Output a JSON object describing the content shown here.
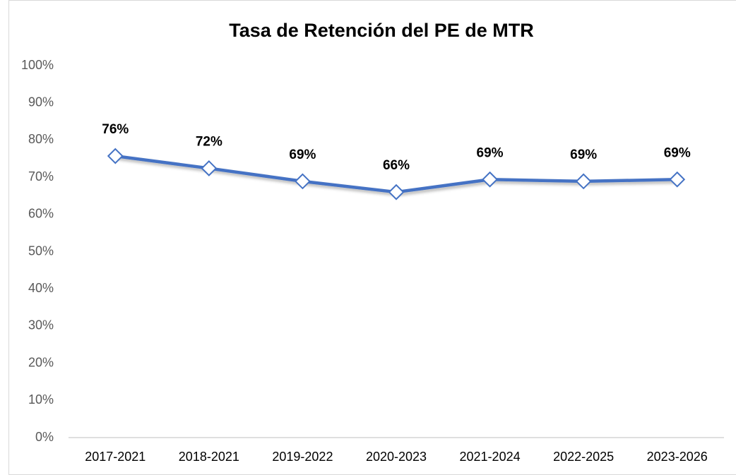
{
  "chart_data": {
    "type": "line",
    "title": "Tasa de Retención del PE de MTR",
    "categories": [
      "2017-2021",
      "2018-2021",
      "2019-2022",
      "2020-2023",
      "2021-2024",
      "2022-2025",
      "2023-2026"
    ],
    "series": [
      {
        "name": "Tasa de Retención",
        "color": "#4472c4",
        "values": [
          75.7,
          72.4,
          68.9,
          66.0,
          69.4,
          68.9,
          69.4
        ],
        "value_labels": [
          "76%",
          "72%",
          "69%",
          "66%",
          "69%",
          "69%",
          "69%"
        ]
      }
    ],
    "ylim": [
      0,
      100
    ],
    "yticks": [
      {
        "value": 0,
        "label": "0%"
      },
      {
        "value": 10,
        "label": "10%"
      },
      {
        "value": 20,
        "label": "20%"
      },
      {
        "value": 30,
        "label": "30%"
      },
      {
        "value": 40,
        "label": "40%"
      },
      {
        "value": 50,
        "label": "50%"
      },
      {
        "value": 60,
        "label": "60%"
      },
      {
        "value": 70,
        "label": "70%"
      },
      {
        "value": 80,
        "label": "80%"
      },
      {
        "value": 90,
        "label": "90%"
      },
      {
        "value": 100,
        "label": "100%"
      }
    ],
    "grid": false
  }
}
